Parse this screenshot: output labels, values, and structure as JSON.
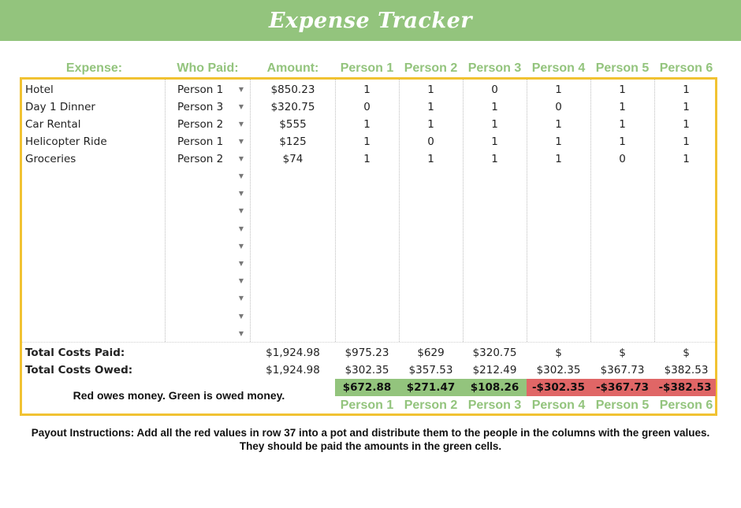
{
  "title": "Expense Tracker",
  "headers": {
    "expense": "Expense:",
    "who_paid": "Who Paid:",
    "amount": "Amount:",
    "persons": [
      "Person 1",
      "Person 2",
      "Person 3",
      "Person 4",
      "Person 5",
      "Person 6"
    ]
  },
  "rows": [
    {
      "expense": "Hotel",
      "payer": "Person 1",
      "amount": "$850.23",
      "shares": [
        "1",
        "1",
        "0",
        "1",
        "1",
        "1"
      ]
    },
    {
      "expense": "Day 1 Dinner",
      "payer": "Person 3",
      "amount": "$320.75",
      "shares": [
        "0",
        "1",
        "1",
        "0",
        "1",
        "1"
      ]
    },
    {
      "expense": "Car Rental",
      "payer": "Person 2",
      "amount": "$555",
      "shares": [
        "1",
        "1",
        "1",
        "1",
        "1",
        "1"
      ]
    },
    {
      "expense": "Helicopter Ride",
      "payer": "Person 1",
      "amount": "$125",
      "shares": [
        "1",
        "0",
        "1",
        "1",
        "1",
        "1"
      ]
    },
    {
      "expense": "Groceries",
      "payer": "Person 2",
      "amount": "$74",
      "shares": [
        "1",
        "1",
        "1",
        "1",
        "0",
        "1"
      ]
    }
  ],
  "empty_dropdown_rows": 10,
  "totals": {
    "paid_label": "Total Costs Paid:",
    "paid_total": "$1,924.98",
    "paid": [
      "$975.23",
      "$629",
      "$320.75",
      "$",
      "$",
      "$"
    ],
    "owed_label": "Total Costs Owed:",
    "owed_total": "$1,924.98",
    "owed": [
      "$302.35",
      "$357.53",
      "$212.49",
      "$302.35",
      "$367.73",
      "$382.53"
    ]
  },
  "balances": [
    {
      "value": "$672.88",
      "status": "pos"
    },
    {
      "value": "$271.47",
      "status": "pos"
    },
    {
      "value": "$108.26",
      "status": "pos"
    },
    {
      "value": "-$302.35",
      "status": "neg"
    },
    {
      "value": "-$367.73",
      "status": "neg"
    },
    {
      "value": "-$382.53",
      "status": "neg"
    }
  ],
  "legend_note": "Red owes money. Green is owed money.",
  "payout_instructions": "Payout Instructions: Add all the red values in row 37 into a pot and distribute them to the people in the columns with the green values. They should be paid the amounts in the green cells.",
  "colors": {
    "banner": "#93c47d",
    "green": "#93c47d",
    "red": "#e06666",
    "border": "#f1c232"
  },
  "icons": {
    "dropdown": "chevron-down-icon"
  }
}
